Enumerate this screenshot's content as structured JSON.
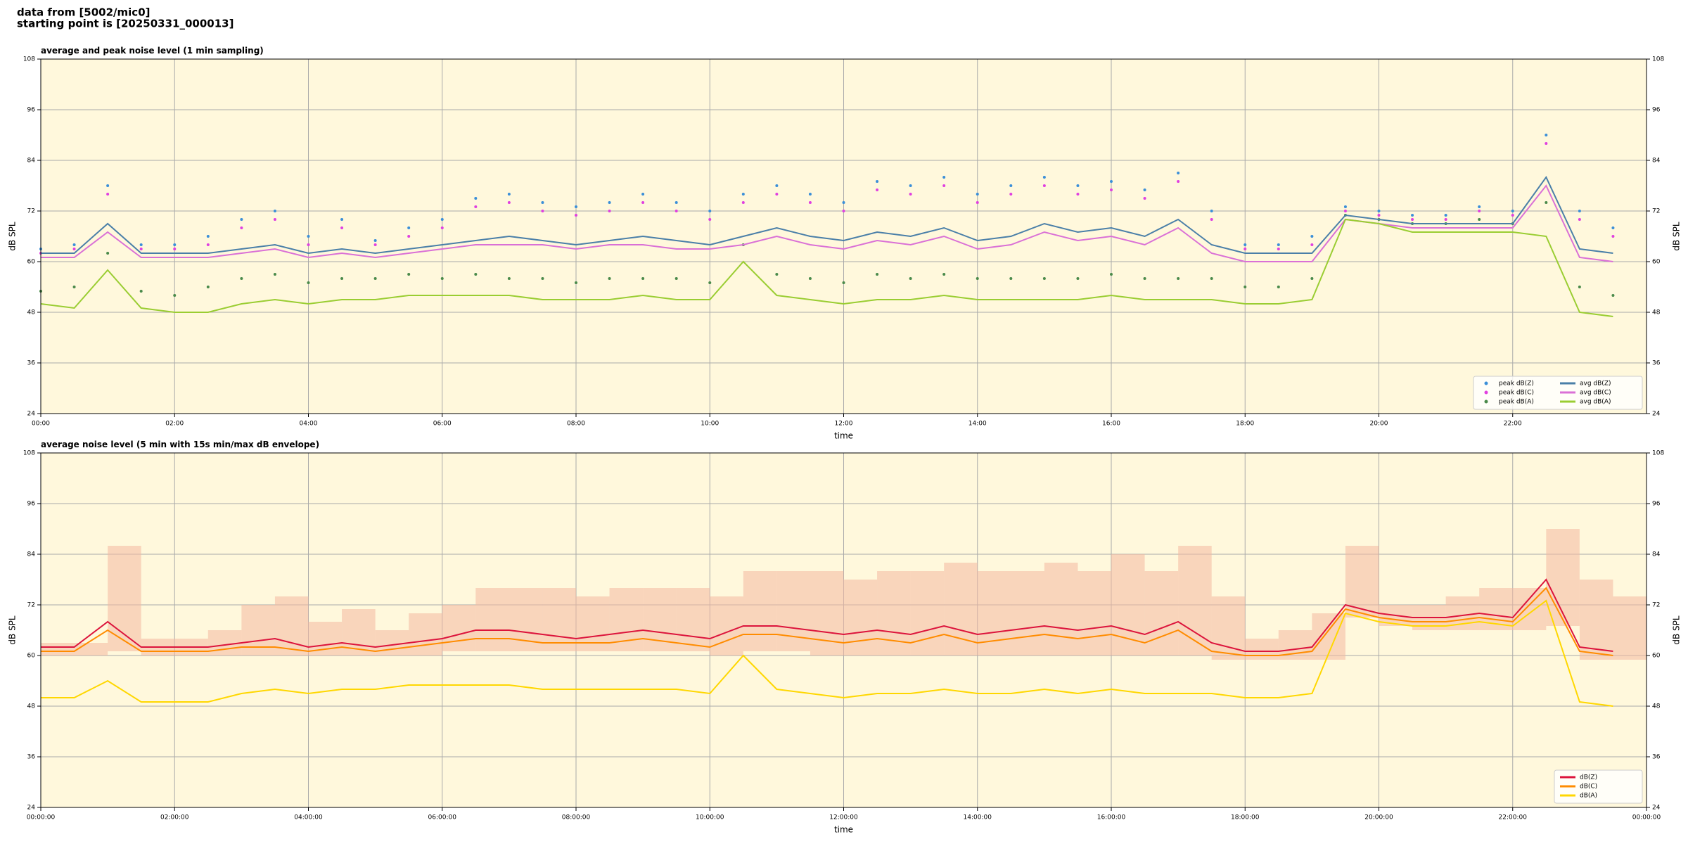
{
  "header": {
    "source": "data from [5002/mic0]",
    "start": "starting point is [20250331_000013]"
  },
  "chart_data": [
    {
      "type": "line",
      "title": "average and peak noise level (1 min sampling)",
      "xlabel": "time",
      "ylabel": "dB SPL",
      "background": "#fff8dc",
      "grid": true,
      "legend": "lower right",
      "legend_columns": 2,
      "xlim": [
        0,
        24
      ],
      "ylim": [
        24,
        108
      ],
      "yticks": [
        24,
        36,
        48,
        60,
        72,
        84,
        96,
        108
      ],
      "xticks": [
        {
          "value": 0,
          "label": "00:00"
        },
        {
          "value": 2,
          "label": "02:00"
        },
        {
          "value": 4,
          "label": "04:00"
        },
        {
          "value": 6,
          "label": "06:00"
        },
        {
          "value": 8,
          "label": "08:00"
        },
        {
          "value": 10,
          "label": "10:00"
        },
        {
          "value": 12,
          "label": "12:00"
        },
        {
          "value": 14,
          "label": "14:00"
        },
        {
          "value": 16,
          "label": "16:00"
        },
        {
          "value": 18,
          "label": "18:00"
        },
        {
          "value": 20,
          "label": "20:00"
        },
        {
          "value": 22,
          "label": "22:00"
        }
      ],
      "x": [
        0,
        0.5,
        1,
        1.5,
        2,
        2.5,
        3,
        3.5,
        4,
        4.5,
        5,
        5.5,
        6,
        6.5,
        7,
        7.5,
        8,
        8.5,
        9,
        9.5,
        10,
        10.5,
        11,
        11.5,
        12,
        12.5,
        13,
        13.5,
        14,
        14.5,
        15,
        15.5,
        16,
        16.5,
        17,
        17.5,
        18,
        18.5,
        19,
        19.5,
        20,
        20.5,
        21,
        21.5,
        22,
        22.5,
        23,
        23.5
      ],
      "series": [
        {
          "name": "peak dB(Z)",
          "color": "#3b8fd8",
          "mark": "dots",
          "values": [
            63,
            64,
            78,
            64,
            64,
            66,
            70,
            72,
            66,
            70,
            65,
            68,
            70,
            75,
            76,
            74,
            73,
            74,
            76,
            74,
            72,
            76,
            78,
            76,
            74,
            79,
            78,
            80,
            76,
            78,
            80,
            78,
            79,
            77,
            81,
            72,
            64,
            64,
            66,
            73,
            72,
            71,
            71,
            73,
            72,
            90,
            72,
            68
          ]
        },
        {
          "name": "peak dB(C)",
          "color": "#e040e0",
          "mark": "dots",
          "values": [
            62,
            63,
            76,
            63,
            63,
            64,
            68,
            70,
            64,
            68,
            64,
            66,
            68,
            73,
            74,
            72,
            71,
            72,
            74,
            72,
            70,
            74,
            76,
            74,
            72,
            77,
            76,
            78,
            74,
            76,
            78,
            76,
            77,
            75,
            79,
            70,
            63,
            63,
            64,
            72,
            71,
            70,
            70,
            72,
            71,
            88,
            70,
            66
          ]
        },
        {
          "name": "peak dB(A)",
          "color": "#4a8a4a",
          "mark": "dots",
          "values": [
            53,
            54,
            62,
            53,
            52,
            54,
            56,
            57,
            55,
            56,
            56,
            57,
            56,
            57,
            56,
            56,
            55,
            56,
            56,
            56,
            55,
            64,
            57,
            56,
            55,
            57,
            56,
            57,
            56,
            56,
            56,
            56,
            57,
            56,
            56,
            56,
            54,
            54,
            56,
            71,
            70,
            69,
            69,
            70,
            69,
            74,
            54,
            52
          ]
        },
        {
          "name": "avg dB(Z)",
          "color": "#4a7fa8",
          "mark": "line",
          "values": [
            62,
            62,
            69,
            62,
            62,
            62,
            63,
            64,
            62,
            63,
            62,
            63,
            64,
            65,
            66,
            65,
            64,
            65,
            66,
            65,
            64,
            66,
            68,
            66,
            65,
            67,
            66,
            68,
            65,
            66,
            69,
            67,
            68,
            66,
            70,
            64,
            62,
            62,
            62,
            71,
            70,
            69,
            69,
            69,
            69,
            80,
            63,
            62
          ]
        },
        {
          "name": "avg dB(C)",
          "color": "#da70d6",
          "mark": "line",
          "values": [
            61,
            61,
            67,
            61,
            61,
            61,
            62,
            63,
            61,
            62,
            61,
            62,
            63,
            64,
            64,
            64,
            63,
            64,
            64,
            63,
            63,
            64,
            66,
            64,
            63,
            65,
            64,
            66,
            63,
            64,
            67,
            65,
            66,
            64,
            68,
            62,
            60,
            60,
            60,
            70,
            69,
            68,
            68,
            68,
            68,
            78,
            61,
            60
          ]
        },
        {
          "name": "avg dB(A)",
          "color": "#9acd32",
          "mark": "line",
          "values": [
            50,
            49,
            58,
            49,
            48,
            48,
            50,
            51,
            50,
            51,
            51,
            52,
            52,
            52,
            52,
            51,
            51,
            51,
            52,
            51,
            51,
            60,
            52,
            51,
            50,
            51,
            51,
            52,
            51,
            51,
            51,
            51,
            52,
            51,
            51,
            51,
            50,
            50,
            51,
            70,
            69,
            67,
            67,
            67,
            67,
            66,
            48,
            47
          ]
        }
      ]
    },
    {
      "type": "line",
      "title": "average noise level (5 min with 15s min/max dB envelope)",
      "xlabel": "time",
      "ylabel": "dB SPL",
      "background": "#fff8dc",
      "grid": true,
      "legend": "lower right",
      "legend_columns": 1,
      "xlim": [
        0,
        24
      ],
      "ylim": [
        24,
        108
      ],
      "yticks": [
        24,
        36,
        48,
        60,
        72,
        84,
        96,
        108
      ],
      "xticks": [
        {
          "value": 0,
          "label": "00:00:00"
        },
        {
          "value": 2,
          "label": "02:00:00"
        },
        {
          "value": 4,
          "label": "04:00:00"
        },
        {
          "value": 6,
          "label": "06:00:00"
        },
        {
          "value": 8,
          "label": "08:00:00"
        },
        {
          "value": 10,
          "label": "10:00:00"
        },
        {
          "value": 12,
          "label": "12:00:00"
        },
        {
          "value": 14,
          "label": "14:00:00"
        },
        {
          "value": 16,
          "label": "16:00:00"
        },
        {
          "value": 18,
          "label": "18:00:00"
        },
        {
          "value": 20,
          "label": "20:00:00"
        },
        {
          "value": 22,
          "label": "22:00:00"
        },
        {
          "value": 24,
          "label": "00:00:00"
        }
      ],
      "x": [
        0,
        0.5,
        1,
        1.5,
        2,
        2.5,
        3,
        3.5,
        4,
        4.5,
        5,
        5.5,
        6,
        6.5,
        7,
        7.5,
        8,
        8.5,
        9,
        9.5,
        10,
        10.5,
        11,
        11.5,
        12,
        12.5,
        13,
        13.5,
        14,
        14.5,
        15,
        15.5,
        16,
        16.5,
        17,
        17.5,
        18,
        18.5,
        19,
        19.5,
        20,
        20.5,
        21,
        21.5,
        22,
        22.5,
        23,
        23.5
      ],
      "envelope": {
        "color": "#f4b8a0",
        "lower": [
          60,
          60,
          61,
          60,
          60,
          60,
          60,
          60,
          60,
          60,
          60,
          60,
          61,
          61,
          61,
          61,
          61,
          61,
          61,
          61,
          60,
          61,
          61,
          60,
          60,
          60,
          60,
          60,
          60,
          60,
          60,
          60,
          60,
          60,
          60,
          59,
          59,
          59,
          59,
          69,
          67,
          66,
          66,
          66,
          66,
          67,
          59,
          59
        ],
        "upper": [
          63,
          63,
          86,
          64,
          64,
          66,
          72,
          74,
          68,
          71,
          66,
          70,
          72,
          76,
          76,
          76,
          74,
          76,
          76,
          76,
          74,
          80,
          80,
          80,
          78,
          80,
          80,
          82,
          80,
          80,
          82,
          80,
          84,
          80,
          86,
          74,
          64,
          66,
          70,
          86,
          72,
          72,
          74,
          76,
          76,
          90,
          78,
          74
        ]
      },
      "series": [
        {
          "name": "dB(Z)",
          "color": "#dc143c",
          "mark": "line",
          "values": [
            62,
            62,
            68,
            62,
            62,
            62,
            63,
            64,
            62,
            63,
            62,
            63,
            64,
            66,
            66,
            65,
            64,
            65,
            66,
            65,
            64,
            67,
            67,
            66,
            65,
            66,
            65,
            67,
            65,
            66,
            67,
            66,
            67,
            65,
            68,
            63,
            61,
            61,
            62,
            72,
            70,
            69,
            69,
            70,
            69,
            78,
            62,
            61
          ]
        },
        {
          "name": "dB(C)",
          "color": "#ff8c00",
          "mark": "line",
          "values": [
            61,
            61,
            66,
            61,
            61,
            61,
            62,
            62,
            61,
            62,
            61,
            62,
            63,
            64,
            64,
            63,
            63,
            63,
            64,
            63,
            62,
            65,
            65,
            64,
            63,
            64,
            63,
            65,
            63,
            64,
            65,
            64,
            65,
            63,
            66,
            61,
            60,
            60,
            61,
            71,
            69,
            68,
            68,
            69,
            68,
            76,
            61,
            60
          ]
        },
        {
          "name": "dB(A)",
          "color": "#ffd700",
          "mark": "line",
          "values": [
            50,
            50,
            54,
            49,
            49,
            49,
            51,
            52,
            51,
            52,
            52,
            53,
            53,
            53,
            53,
            52,
            52,
            52,
            52,
            52,
            51,
            60,
            52,
            51,
            50,
            51,
            51,
            52,
            51,
            51,
            52,
            51,
            52,
            51,
            51,
            51,
            50,
            50,
            51,
            70,
            68,
            67,
            67,
            68,
            67,
            73,
            49,
            48
          ]
        }
      ]
    }
  ]
}
